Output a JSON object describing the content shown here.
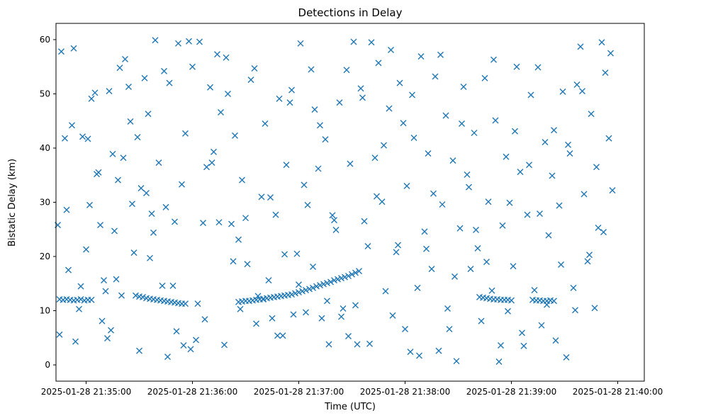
{
  "chart_data": {
    "type": "scatter",
    "title": "Detections in Delay",
    "xlabel": "Time (UTC)",
    "ylabel": "Bistatic Delay (km)",
    "x_unit": "seconds since 2025-01-28 21:35:00",
    "xlim": [
      -17,
      315
    ],
    "ylim": [
      -3,
      63
    ],
    "xticks": [
      {
        "value": 0,
        "label": "2025-01-28 21:35:00"
      },
      {
        "value": 60,
        "label": "2025-01-28 21:36:00"
      },
      {
        "value": 120,
        "label": "2025-01-28 21:37:00"
      },
      {
        "value": 180,
        "label": "2025-01-28 21:38:00"
      },
      {
        "value": 240,
        "label": "2025-01-28 21:39:00"
      },
      {
        "value": 300,
        "label": "2025-01-28 21:40:00"
      }
    ],
    "yticks": [
      {
        "value": 0,
        "label": "0"
      },
      {
        "value": 10,
        "label": "10"
      },
      {
        "value": 20,
        "label": "20"
      },
      {
        "value": 30,
        "label": "30"
      },
      {
        "value": 40,
        "label": "40"
      },
      {
        "value": 50,
        "label": "50"
      },
      {
        "value": 60,
        "label": "60"
      }
    ],
    "marker": "x",
    "color": "#1f77b4",
    "grid": false,
    "series": [
      {
        "name": "Detections",
        "track_points": [
          [
            -15,
            12.1
          ],
          [
            -13,
            12
          ],
          [
            -11,
            12.1
          ],
          [
            -9,
            12
          ],
          [
            -7,
            11.9
          ],
          [
            -5,
            12
          ],
          [
            -3,
            12.1
          ],
          [
            -1,
            11.9
          ],
          [
            1,
            12
          ],
          [
            3,
            12
          ],
          [
            28,
            12.8
          ],
          [
            30,
            12.6
          ],
          [
            32,
            12.5
          ],
          [
            34,
            12.3
          ],
          [
            36,
            12.2
          ],
          [
            38,
            12.1
          ],
          [
            40,
            12
          ],
          [
            42,
            11.9
          ],
          [
            44,
            11.8
          ],
          [
            46,
            11.7
          ],
          [
            48,
            11.6
          ],
          [
            50,
            11.5
          ],
          [
            52,
            11.4
          ],
          [
            54,
            11.3
          ],
          [
            56,
            11.3
          ],
          [
            86,
            11.6
          ],
          [
            88,
            11.7
          ],
          [
            90,
            11.8
          ],
          [
            92,
            11.8
          ],
          [
            94,
            11.9
          ],
          [
            96,
            12
          ],
          [
            98,
            12.1
          ],
          [
            100,
            12.2
          ],
          [
            102,
            12.3
          ],
          [
            104,
            12.4
          ],
          [
            106,
            12.5
          ],
          [
            108,
            12.6
          ],
          [
            110,
            12.7
          ],
          [
            112,
            12.8
          ],
          [
            114,
            12.9
          ],
          [
            116,
            13
          ],
          [
            118,
            13.2
          ],
          [
            120,
            13.4
          ],
          [
            122,
            13.6
          ],
          [
            124,
            13.8
          ],
          [
            126,
            14
          ],
          [
            128,
            14.2
          ],
          [
            130,
            14.5
          ],
          [
            132,
            14.7
          ],
          [
            134,
            14.9
          ],
          [
            136,
            15.1
          ],
          [
            138,
            15.3
          ],
          [
            140,
            15.6
          ],
          [
            142,
            15.8
          ],
          [
            144,
            16
          ],
          [
            146,
            16.2
          ],
          [
            148,
            16.4
          ],
          [
            150,
            16.7
          ],
          [
            152,
            17
          ],
          [
            154,
            17.3
          ],
          [
            222,
            12.5
          ],
          [
            224,
            12.4
          ],
          [
            226,
            12.3
          ],
          [
            228,
            12.2
          ],
          [
            230,
            12.1
          ],
          [
            232,
            12.1
          ],
          [
            234,
            12
          ],
          [
            236,
            12
          ],
          [
            238,
            12
          ],
          [
            240,
            11.9
          ],
          [
            252,
            12
          ],
          [
            254,
            11.9
          ],
          [
            256,
            11.9
          ],
          [
            258,
            11.8
          ],
          [
            260,
            11.8
          ],
          [
            262,
            11.9
          ],
          [
            264,
            11.8
          ]
        ],
        "scatter_points": [
          [
            -16,
            25.8
          ],
          [
            -14,
            57.8
          ],
          [
            -12,
            41.8
          ],
          [
            -10,
            17.5
          ],
          [
            -8,
            44.2
          ],
          [
            -6,
            4.3
          ],
          [
            -4,
            10.3
          ],
          [
            -2,
            42.1
          ],
          [
            0,
            21.3
          ],
          [
            1,
            41.7
          ],
          [
            3,
            49.1
          ],
          [
            5,
            50.2
          ],
          [
            7,
            35.5
          ],
          [
            9,
            8.1
          ],
          [
            11,
            13.6
          ],
          [
            13,
            50.5
          ],
          [
            14,
            6.4
          ],
          [
            15,
            38.9
          ],
          [
            17,
            15.8
          ],
          [
            19,
            54.8
          ],
          [
            21,
            38.2
          ],
          [
            22,
            56.4
          ],
          [
            24,
            51.3
          ],
          [
            26,
            29.7
          ],
          [
            27,
            20.7
          ],
          [
            29,
            42
          ],
          [
            31,
            32.6
          ],
          [
            33,
            52.9
          ],
          [
            35,
            46.3
          ],
          [
            37,
            27.9
          ],
          [
            39,
            59.9
          ],
          [
            41,
            37.3
          ],
          [
            43,
            14.6
          ],
          [
            45,
            29.1
          ],
          [
            47,
            52
          ],
          [
            49,
            14.6
          ],
          [
            51,
            6.2
          ],
          [
            52,
            59.3
          ],
          [
            54,
            33.3
          ],
          [
            56,
            42.7
          ],
          [
            58,
            59.7
          ],
          [
            60,
            55
          ],
          [
            62,
            4.6
          ],
          [
            64,
            59.6
          ],
          [
            66,
            26.2
          ],
          [
            68,
            36.5
          ],
          [
            70,
            51.2
          ],
          [
            72,
            39.3
          ],
          [
            74,
            57.3
          ],
          [
            76,
            46.6
          ],
          [
            78,
            3.7
          ],
          [
            80,
            50
          ],
          [
            82,
            26
          ],
          [
            84,
            42.3
          ],
          [
            86,
            23.1
          ],
          [
            88,
            34.1
          ],
          [
            90,
            27.1
          ],
          [
            93,
            52.6
          ],
          [
            95,
            54.7
          ],
          [
            97,
            12.7
          ],
          [
            99,
            31
          ],
          [
            101,
            44.5
          ],
          [
            103,
            15.6
          ],
          [
            105,
            8.6
          ],
          [
            107,
            27.7
          ],
          [
            109,
            49.1
          ],
          [
            111,
            5.4
          ],
          [
            113,
            36.9
          ],
          [
            115,
            48.4
          ],
          [
            117,
            9.3
          ],
          [
            119,
            20.5
          ],
          [
            121,
            59.3
          ],
          [
            123,
            33.2
          ],
          [
            125,
            29.5
          ],
          [
            127,
            54.5
          ],
          [
            129,
            47.1
          ],
          [
            131,
            36.2
          ],
          [
            133,
            8.6
          ],
          [
            135,
            41.6
          ],
          [
            137,
            3.8
          ],
          [
            139,
            27.6
          ],
          [
            141,
            24.9
          ],
          [
            143,
            48.4
          ],
          [
            145,
            10.4
          ],
          [
            147,
            54.4
          ],
          [
            149,
            37.1
          ],
          [
            151,
            59.6
          ],
          [
            153,
            3.8
          ],
          [
            155,
            51
          ],
          [
            157,
            26.5
          ],
          [
            159,
            21.9
          ],
          [
            161,
            59.5
          ],
          [
            163,
            38.2
          ],
          [
            165,
            55.7
          ],
          [
            167,
            30.1
          ],
          [
            169,
            13.6
          ],
          [
            171,
            47.3
          ],
          [
            173,
            9.1
          ],
          [
            175,
            20.8
          ],
          [
            177,
            52
          ],
          [
            179,
            44.6
          ],
          [
            181,
            33
          ],
          [
            183,
            2.4
          ],
          [
            185,
            41.9
          ],
          [
            187,
            14.2
          ],
          [
            189,
            56.9
          ],
          [
            191,
            24.6
          ],
          [
            193,
            39
          ],
          [
            195,
            17.7
          ],
          [
            197,
            53.2
          ],
          [
            199,
            2.6
          ],
          [
            201,
            29.6
          ],
          [
            203,
            46
          ],
          [
            205,
            6.6
          ],
          [
            207,
            37.7
          ],
          [
            209,
            0.7
          ],
          [
            211,
            25.2
          ],
          [
            213,
            51.3
          ],
          [
            215,
            35.1
          ],
          [
            217,
            17.7
          ],
          [
            219,
            42.8
          ],
          [
            221,
            21.5
          ],
          [
            223,
            8.1
          ],
          [
            225,
            52.9
          ],
          [
            227,
            30.1
          ],
          [
            229,
            13.7
          ],
          [
            231,
            45.1
          ],
          [
            233,
            0.6
          ],
          [
            235,
            25.7
          ],
          [
            237,
            38.4
          ],
          [
            239,
            29.9
          ],
          [
            241,
            18.2
          ],
          [
            243,
            55
          ],
          [
            245,
            35.6
          ],
          [
            247,
            3.5
          ],
          [
            249,
            27.7
          ],
          [
            251,
            49.8
          ],
          [
            253,
            13.8
          ],
          [
            255,
            54.9
          ],
          [
            257,
            7.3
          ],
          [
            259,
            41.1
          ],
          [
            261,
            23.9
          ],
          [
            263,
            34.9
          ],
          [
            265,
            4.5
          ],
          [
            267,
            29.4
          ],
          [
            269,
            50.4
          ],
          [
            271,
            1.4
          ],
          [
            273,
            39
          ],
          [
            275,
            14.2
          ],
          [
            277,
            51.7
          ],
          [
            279,
            58.7
          ],
          [
            281,
            31.5
          ],
          [
            283,
            19.1
          ],
          [
            285,
            46.3
          ],
          [
            287,
            10.5
          ],
          [
            289,
            25.3
          ],
          [
            291,
            59.5
          ],
          [
            293,
            53.9
          ],
          [
            295,
            41.8
          ],
          [
            297,
            32.2
          ],
          [
            -15,
            5.6
          ],
          [
            -11,
            28.6
          ],
          [
            -7,
            58.4
          ],
          [
            -3,
            14.5
          ],
          [
            2,
            29.5
          ],
          [
            6,
            35.2
          ],
          [
            10,
            15.6
          ],
          [
            16,
            24.7
          ],
          [
            20,
            12.8
          ],
          [
            25,
            44.9
          ],
          [
            30,
            2.6
          ],
          [
            34,
            31.7
          ],
          [
            38,
            24.4
          ],
          [
            44,
            54.2
          ],
          [
            50,
            26.4
          ],
          [
            55,
            3.6
          ],
          [
            59,
            2.9
          ],
          [
            63,
            11.3
          ],
          [
            67,
            8.4
          ],
          [
            71,
            37.3
          ],
          [
            75,
            26.3
          ],
          [
            79,
            56.7
          ],
          [
            83,
            19.1
          ],
          [
            87,
            10.3
          ],
          [
            91,
            18.6
          ],
          [
            96,
            7.6
          ],
          [
            100,
            12.1
          ],
          [
            104,
            30.9
          ],
          [
            108,
            5.4
          ],
          [
            112,
            20.4
          ],
          [
            116,
            50.7
          ],
          [
            120,
            14.8
          ],
          [
            124,
            9.7
          ],
          [
            128,
            18.1
          ],
          [
            132,
            44.2
          ],
          [
            136,
            11.8
          ],
          [
            140,
            26.7
          ],
          [
            144,
            8.9
          ],
          [
            148,
            5.3
          ],
          [
            152,
            11
          ],
          [
            156,
            49.3
          ],
          [
            160,
            3.9
          ],
          [
            164,
            31.1
          ],
          [
            168,
            40.5
          ],
          [
            172,
            58.1
          ],
          [
            176,
            22.1
          ],
          [
            180,
            6.6
          ],
          [
            184,
            49.8
          ],
          [
            188,
            1.7
          ],
          [
            192,
            21.4
          ],
          [
            196,
            31.6
          ],
          [
            200,
            57.2
          ],
          [
            204,
            10.4
          ],
          [
            208,
            16.3
          ],
          [
            212,
            44.5
          ],
          [
            216,
            32.8
          ],
          [
            220,
            24.9
          ],
          [
            226,
            19
          ],
          [
            230,
            56.3
          ],
          [
            234,
            3.6
          ],
          [
            238,
            9.9
          ],
          [
            242,
            43.1
          ],
          [
            246,
            5.9
          ],
          [
            250,
            36.9
          ],
          [
            256,
            27.9
          ],
          [
            260,
            11.1
          ],
          [
            264,
            43.3
          ],
          [
            268,
            18.5
          ],
          [
            272,
            40.6
          ],
          [
            276,
            10.1
          ],
          [
            280,
            50.5
          ],
          [
            284,
            20.3
          ],
          [
            288,
            36.5
          ],
          [
            292,
            24.5
          ],
          [
            296,
            57.5
          ],
          [
            8,
            25.8
          ],
          [
            12,
            4.9
          ],
          [
            18,
            34.1
          ],
          [
            36,
            19.7
          ],
          [
            46,
            1.5
          ]
        ]
      }
    ]
  }
}
